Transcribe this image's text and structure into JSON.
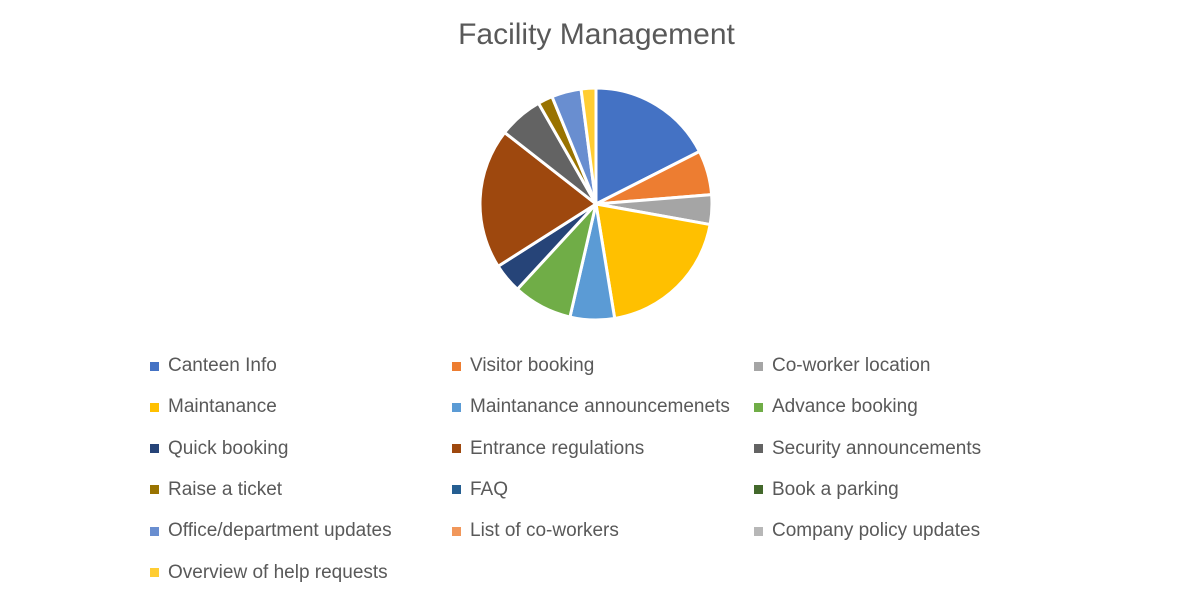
{
  "chart_data": {
    "type": "pie",
    "title": "Facility Management",
    "legend_position": "bottom",
    "slices": [
      {
        "label": "Canteen Info",
        "value": 17,
        "color": "#4472C4"
      },
      {
        "label": "Visitor booking",
        "value": 6,
        "color": "#ED7D31"
      },
      {
        "label": "Co-worker location",
        "value": 4,
        "color": "#A5A5A5"
      },
      {
        "label": "Maintanance",
        "value": 19,
        "color": "#FFC000"
      },
      {
        "label": "Maintanance announcemenets",
        "value": 6,
        "color": "#5B9BD5"
      },
      {
        "label": "Advance booking",
        "value": 8,
        "color": "#70AD47"
      },
      {
        "label": "Quick booking",
        "value": 4,
        "color": "#264478"
      },
      {
        "label": "Entrance regulations",
        "value": 19,
        "color": "#9E480E"
      },
      {
        "label": "Security announcements",
        "value": 6,
        "color": "#636363"
      },
      {
        "label": "Raise a ticket",
        "value": 2,
        "color": "#997300"
      },
      {
        "label": "FAQ",
        "value": 0,
        "color": "#255E91"
      },
      {
        "label": "Book a parking",
        "value": 0,
        "color": "#43682B"
      },
      {
        "label": "Office/department updates",
        "value": 4,
        "color": "#698ED0"
      },
      {
        "label": "List of co-workers",
        "value": 0,
        "color": "#F1975A"
      },
      {
        "label": "Company policy updates",
        "value": 0,
        "color": "#B7B7B7"
      },
      {
        "label": "Overview of help requests",
        "value": 2,
        "color": "#FFCD33"
      }
    ]
  }
}
